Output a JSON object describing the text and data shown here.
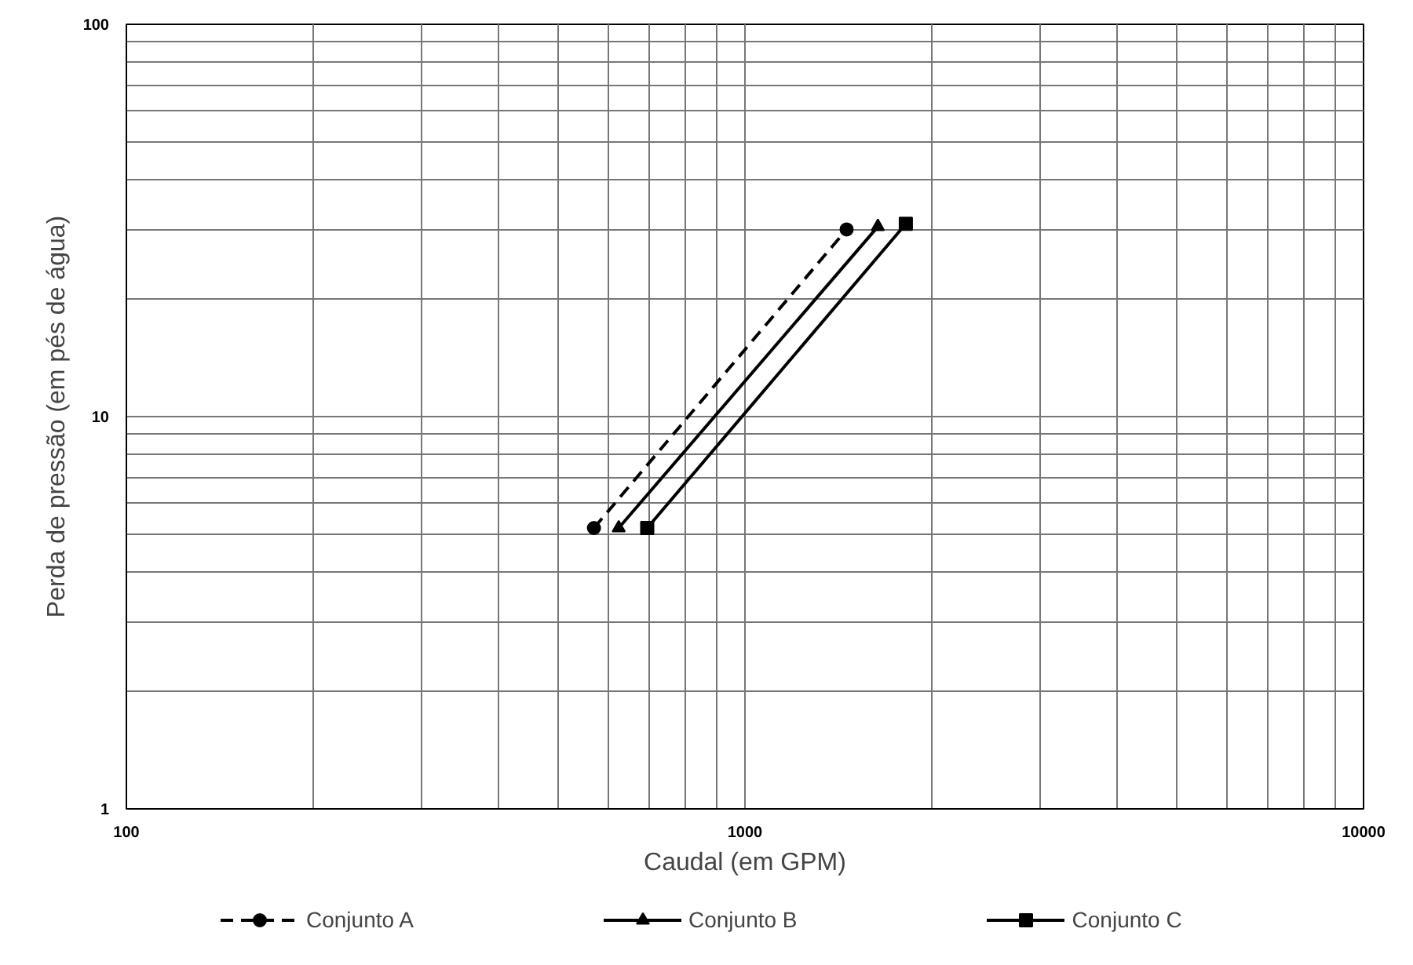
{
  "chart_data": {
    "type": "line",
    "xlabel": "Caudal (em GPM)",
    "ylabel": "Perda de pressão (em pés de água)",
    "log": "xy",
    "grid": true,
    "legend": "bottom",
    "xlim": [
      100,
      10000
    ],
    "ylim": [
      1,
      100
    ],
    "xticks": [
      100,
      {
        "value": 200,
        "label": null
      },
      {
        "value": 300,
        "label": null
      },
      {
        "value": 400,
        "label": null
      },
      {
        "value": 500,
        "label": null
      },
      {
        "value": 600,
        "label": null
      },
      {
        "value": 700,
        "label": null
      },
      {
        "value": 800,
        "label": null
      },
      {
        "value": 900,
        "label": null
      },
      1000,
      {
        "value": 2000,
        "label": null
      },
      {
        "value": 3000,
        "label": null
      },
      {
        "value": 4000,
        "label": null
      },
      {
        "value": 5000,
        "label": null
      },
      {
        "value": 6000,
        "label": null
      },
      {
        "value": 7000,
        "label": null
      },
      {
        "value": 8000,
        "label": null
      },
      {
        "value": 9000,
        "label": null
      },
      10000
    ],
    "yticks": [
      1,
      {
        "value": 2,
        "label": null
      },
      {
        "value": 3,
        "label": null
      },
      {
        "value": 4,
        "label": null
      },
      {
        "value": 5,
        "label": null
      },
      {
        "value": 6,
        "label": null
      },
      {
        "value": 7,
        "label": null
      },
      {
        "value": 8,
        "label": null
      },
      {
        "value": 9,
        "label": null
      },
      10,
      {
        "value": 20,
        "label": null
      },
      {
        "value": 30,
        "label": null
      },
      {
        "value": 40,
        "label": null
      },
      {
        "value": 50,
        "label": null
      },
      {
        "value": 60,
        "label": null
      },
      {
        "value": 70,
        "label": null
      },
      {
        "value": 80,
        "label": null
      },
      {
        "value": 90,
        "label": null
      },
      100
    ],
    "series": [
      {
        "name": "Conjunto A",
        "color": "#000000",
        "x": [
          570,
          1460
        ],
        "values": [
          5.2,
          30
        ],
        "marker": "circle",
        "line_style": "dashed"
      },
      {
        "name": "Conjunto B",
        "color": "#000000",
        "x": [
          625,
          1640
        ],
        "values": [
          5.2,
          30.5
        ],
        "marker": "triangle",
        "line_style": "solid"
      },
      {
        "name": "Conjunto C",
        "color": "#000000",
        "x": [
          695,
          1820
        ],
        "values": [
          5.2,
          31
        ],
        "marker": "square",
        "line_style": "solid"
      }
    ]
  }
}
